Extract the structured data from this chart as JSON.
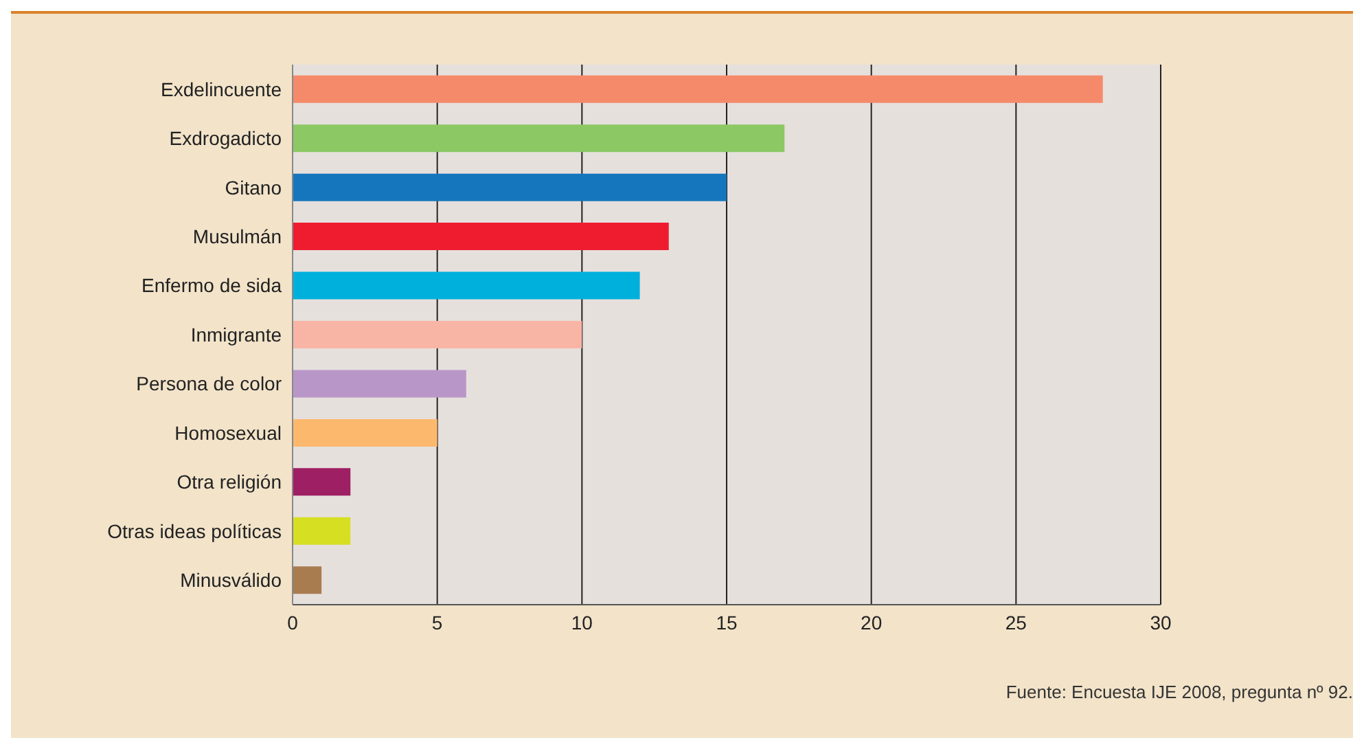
{
  "chart_data": {
    "type": "bar",
    "orientation": "horizontal",
    "categories": [
      "Exdelincuente",
      "Exdrogadicto",
      "Gitano",
      "Musulmán",
      "Enfermo de sida",
      "Inmigrante",
      "Persona de color",
      "Homosexual",
      "Otra religión",
      "Otras ideas políticas",
      "Minusválido"
    ],
    "values": [
      28,
      17,
      15,
      13,
      12,
      10,
      6,
      5,
      2,
      2,
      1
    ],
    "colors": [
      "#f58a6b",
      "#8cc864",
      "#1676bd",
      "#ee1c2e",
      "#00b0dc",
      "#f8b5a5",
      "#b996c8",
      "#fcb96e",
      "#9e1f63",
      "#d6df22",
      "#a97c50"
    ],
    "xlim": [
      0,
      30
    ],
    "xticks": [
      0,
      5,
      10,
      15,
      20,
      25,
      30
    ],
    "grid": "x",
    "annotations": [
      "Fuente: Encuesta IJE 2008, pregunta nº 92."
    ]
  }
}
